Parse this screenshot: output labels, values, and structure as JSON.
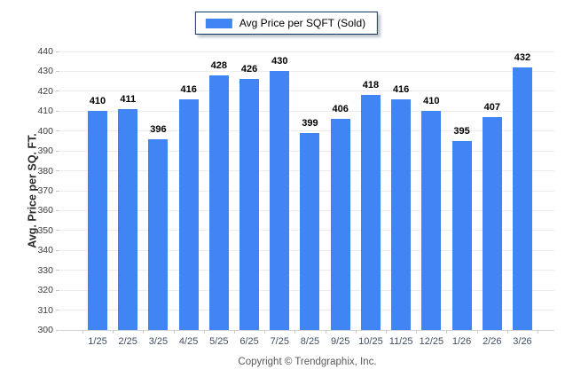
{
  "chart_data": {
    "type": "bar",
    "legend": [
      "Avg Price per SQFT (Sold)"
    ],
    "legend_position": "top-center",
    "categories": [
      "1/25",
      "2/25",
      "3/25",
      "4/25",
      "5/25",
      "6/25",
      "7/25",
      "8/25",
      "9/25",
      "10/25",
      "11/25",
      "12/25",
      "1/26",
      "2/26",
      "3/26"
    ],
    "values": [
      410,
      411,
      396,
      416,
      428,
      426,
      430,
      399,
      406,
      418,
      416,
      410,
      395,
      407,
      432
    ],
    "xlabel": "",
    "ylabel": "Avg. Price per SQ. FT.",
    "ylim": [
      300,
      440
    ],
    "y_tick_step": 10,
    "y_tick_labels": [
      "300",
      "310",
      "320",
      "330",
      "340",
      "350",
      "360",
      "370",
      "380",
      "390",
      "400",
      "410",
      "420",
      "430",
      "440"
    ],
    "grid": true,
    "value_labels": true,
    "bar_color": "#4184f3"
  },
  "colors": {
    "bar": "#4184f3",
    "legend_border": "#17365d",
    "gridline": "#ececec",
    "x_label": "#414e63"
  },
  "footer": {
    "copyright": "Copyright © Trendgraphix, Inc."
  }
}
